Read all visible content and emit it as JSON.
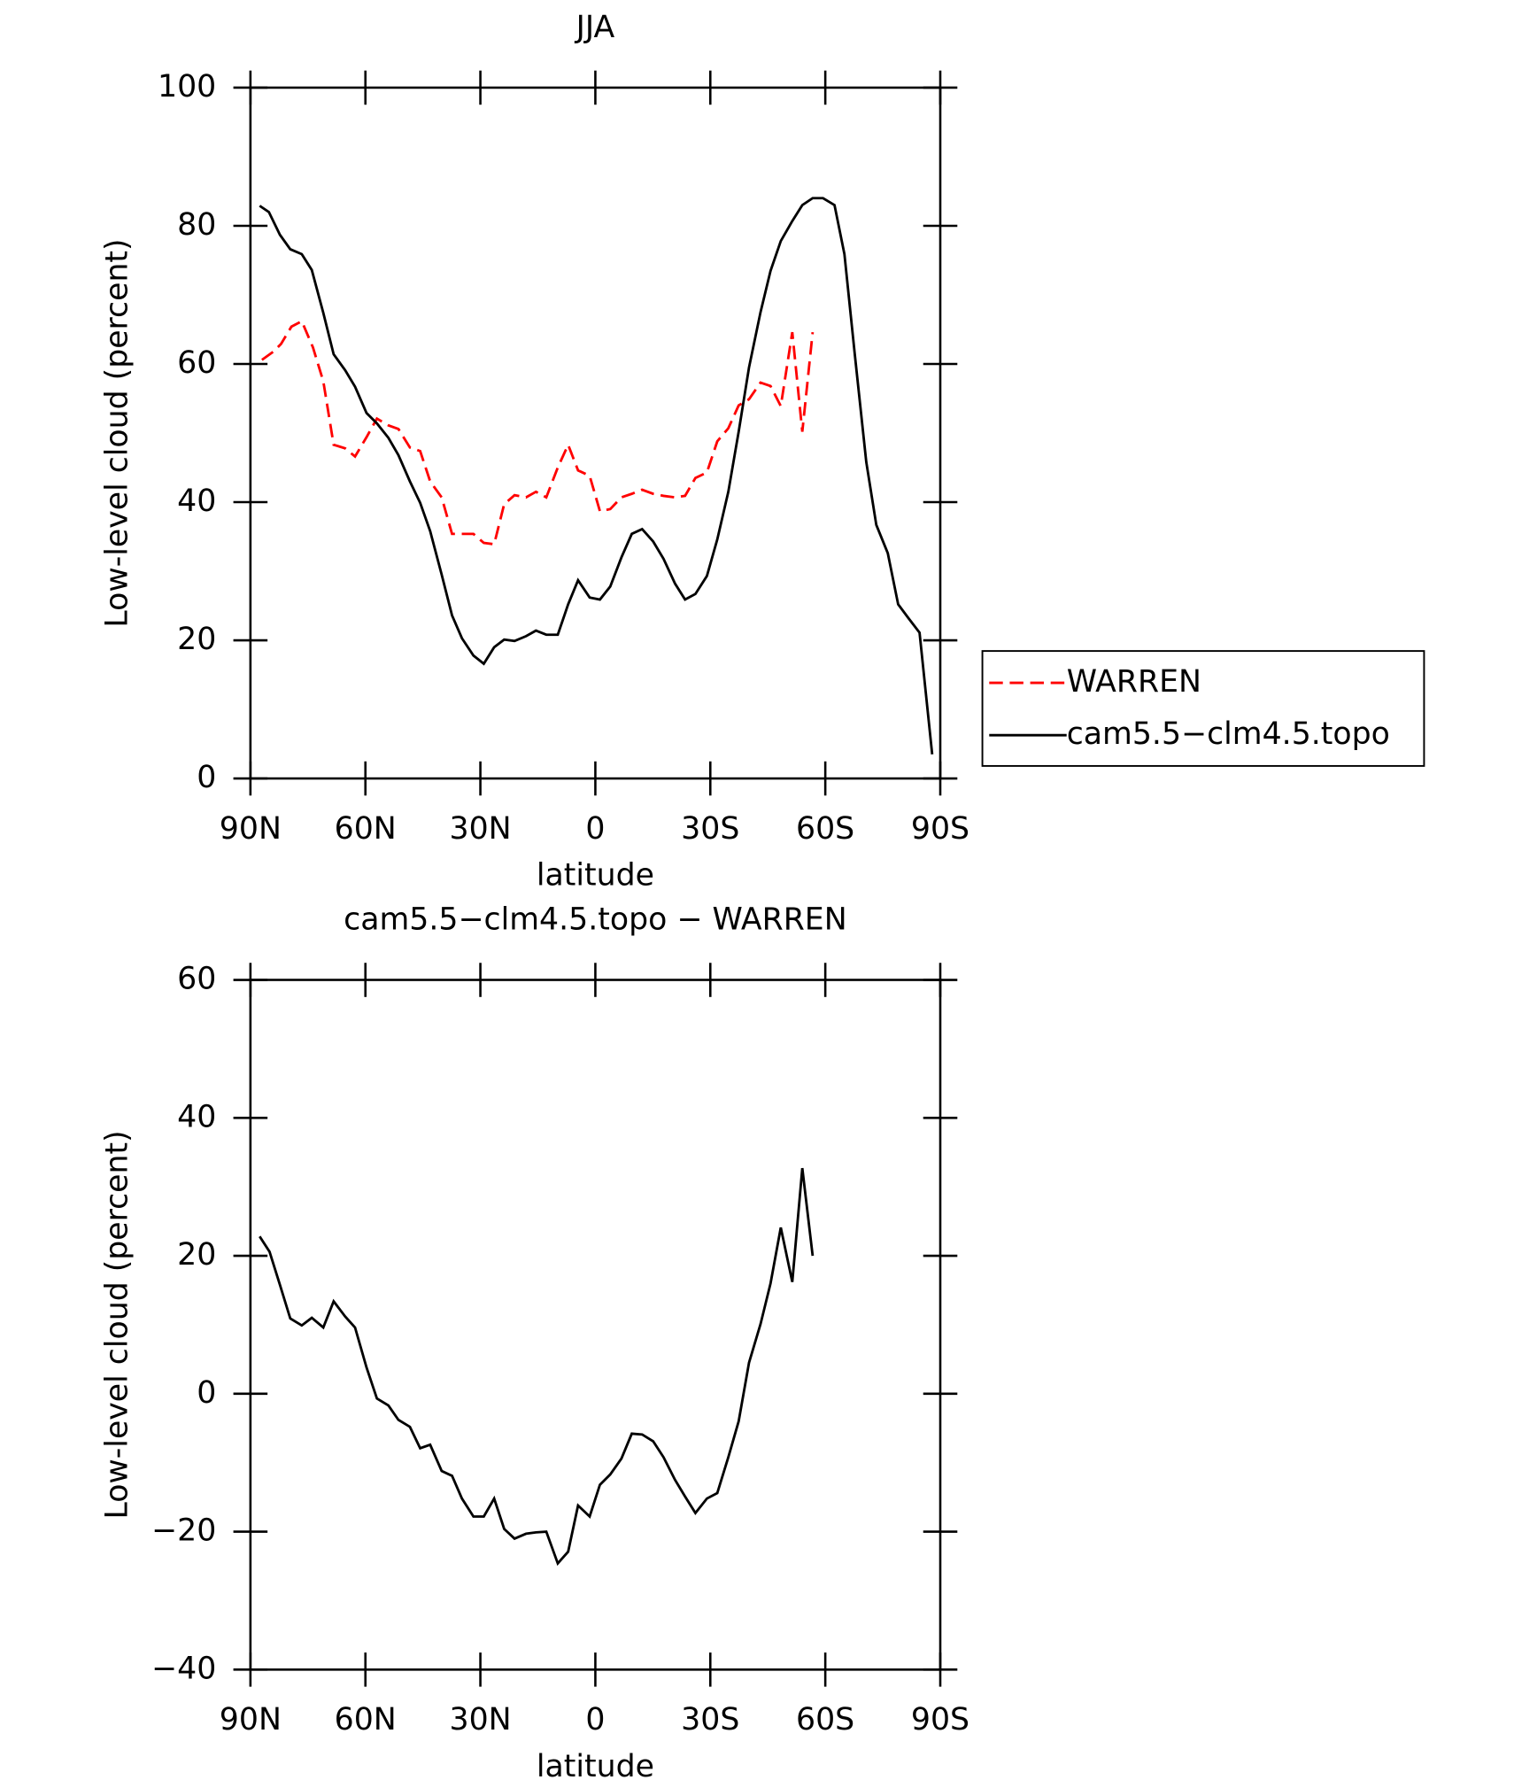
{
  "chart_data": [
    {
      "type": "line",
      "title": "JJA",
      "xlabel": "latitude",
      "ylabel": "Low-level cloud (percent)",
      "xlim": [
        90,
        -90
      ],
      "xticks": [
        {
          "value": 90,
          "label": "90N"
        },
        {
          "value": 60,
          "label": "60N"
        },
        {
          "value": 30,
          "label": "30N"
        },
        0,
        {
          "value": -30,
          "label": "30S"
        },
        {
          "value": -60,
          "label": "60S"
        },
        {
          "value": -90,
          "label": "90S"
        }
      ],
      "ylim": [
        0,
        100
      ],
      "yticks": [
        0,
        20,
        40,
        60,
        80,
        100
      ],
      "legend": "outside right",
      "series": [
        {
          "name": "WARREN",
          "color": "#ff0000",
          "line_style": "dashed",
          "x": [
            87,
            84,
            82,
            79.3,
            76.6,
            73.7,
            71,
            68.3,
            65.3,
            62.7,
            59.7,
            57,
            54,
            51.4,
            48.4,
            45.7,
            43.1,
            40.1,
            37.4,
            34.8,
            31.8,
            29.1,
            26.4,
            23.8,
            21.1,
            18.1,
            15.5,
            12.8,
            9.8,
            7.1,
            4.5,
            1.5,
            -1.2,
            -3.9,
            -6.8,
            -9.5,
            -12.2,
            -15.1,
            -17.8,
            -20.8,
            -23.4,
            -26.1,
            -29.1,
            -31.8,
            -34.7,
            -37.4,
            -40.1,
            -43.1,
            -45.7,
            -48.4,
            -51.4,
            -54,
            -56.7
          ],
          "values": [
            60.6,
            61.8,
            62.9,
            65.4,
            66.2,
            62.4,
            57.5,
            48.3,
            47.8,
            46.6,
            49.4,
            52.1,
            51.1,
            50.6,
            47.9,
            47.4,
            43,
            40.7,
            35.4,
            35.4,
            35.4,
            34.1,
            33.9,
            39.7,
            41,
            40.7,
            41.5,
            40.7,
            45,
            48.3,
            44.6,
            43.8,
            38.7,
            39,
            40.7,
            41.2,
            41.8,
            41.2,
            40.9,
            40.7,
            40.9,
            43.5,
            44.3,
            48.8,
            50.7,
            54,
            54.9,
            57.3,
            56.8,
            53.9,
            64.6,
            50.2,
            64.6
          ]
        },
        {
          "name": "cam5.5−clm4.5.topo",
          "color": "#000000",
          "line_style": "solid",
          "x": [
            87.6,
            85.2,
            82.3,
            79.6,
            76.6,
            74,
            71,
            68.3,
            65.3,
            62.7,
            59.7,
            57,
            54,
            51.4,
            48.4,
            45.7,
            43.1,
            40.1,
            37.4,
            34.8,
            31.8,
            29.1,
            26.4,
            23.8,
            21.1,
            18.1,
            15.5,
            12.8,
            9.8,
            7.1,
            4.5,
            1.5,
            -1.2,
            -3.9,
            -6.8,
            -9.5,
            -12.2,
            -15.1,
            -17.8,
            -20.8,
            -23.4,
            -26.1,
            -29.1,
            -31.8,
            -34.7,
            -37.4,
            -40.1,
            -43.1,
            -45.7,
            -48.4,
            -51.4,
            -54,
            -56.7,
            -59.4,
            -62.4,
            -65,
            -67.7,
            -70.7,
            -73.3,
            -76.3,
            -79,
            -81.7,
            -84.6,
            -87.9
          ],
          "values": [
            82.9,
            82,
            78.7,
            76.6,
            75.9,
            73.6,
            67.4,
            61.4,
            59.1,
            56.7,
            52.9,
            51.4,
            49.3,
            46.8,
            43,
            39.9,
            35.8,
            29.5,
            23.6,
            20.3,
            17.8,
            16.6,
            19,
            20.1,
            19.9,
            20.6,
            21.4,
            20.8,
            20.8,
            25.2,
            28.7,
            26.2,
            25.9,
            27.8,
            32,
            35.4,
            36.1,
            34.3,
            31.8,
            28.2,
            25.9,
            26.7,
            29.3,
            34.6,
            41.5,
            50.2,
            59.5,
            67.5,
            73.5,
            77.8,
            80.7,
            83,
            84,
            84,
            83,
            75.9,
            61.4,
            45.8,
            36.7,
            32.6,
            25.2,
            23.2,
            21.1,
            3.5
          ]
        }
      ]
    },
    {
      "type": "line",
      "title": "cam5.5−clm4.5.topo − WARREN",
      "xlabel": "latitude",
      "ylabel": "Low-level cloud (percent)",
      "xlim": [
        90,
        -90
      ],
      "xticks": [
        {
          "value": 90,
          "label": "90N"
        },
        {
          "value": 60,
          "label": "60N"
        },
        {
          "value": 30,
          "label": "30N"
        },
        0,
        {
          "value": -30,
          "label": "30S"
        },
        {
          "value": -60,
          "label": "60S"
        },
        {
          "value": -90,
          "label": "90S"
        }
      ],
      "ylim": [
        -40,
        60
      ],
      "yticks": [
        {
          "value": -40,
          "label": "−40"
        },
        {
          "value": -20,
          "label": "−20"
        },
        0,
        20,
        40,
        60
      ],
      "series": [
        {
          "color": "#000000",
          "line_style": "solid",
          "x": [
            87.6,
            85,
            82.3,
            79.6,
            76.6,
            74,
            71,
            68.3,
            65.3,
            62.7,
            59.7,
            57,
            54,
            51.4,
            48.4,
            45.7,
            43.1,
            40.1,
            37.4,
            34.8,
            31.8,
            29.1,
            26.4,
            23.8,
            21.1,
            18.1,
            15.5,
            12.8,
            9.8,
            7.1,
            4.5,
            1.5,
            -1.2,
            -3.9,
            -6.8,
            -9.5,
            -12.2,
            -15.1,
            -17.8,
            -20.8,
            -23.4,
            -26.1,
            -29.1,
            -31.8,
            -34.7,
            -37.4,
            -40.1,
            -43.1,
            -45.7,
            -48.4,
            -51.4,
            -54,
            -56.7
          ],
          "values": [
            22.8,
            20.6,
            15.8,
            10.9,
            9.9,
            11,
            9.6,
            13.4,
            11.2,
            9.6,
            3.8,
            -0.7,
            -1.7,
            -3.8,
            -4.8,
            -7.9,
            -7.4,
            -11.2,
            -11.9,
            -15.2,
            -17.8,
            -17.8,
            -15.2,
            -19.6,
            -21,
            -20.3,
            -20.1,
            -20,
            -24.6,
            -22.9,
            -16.2,
            -17.8,
            -13.2,
            -11.7,
            -9.4,
            -5.8,
            -5.9,
            -6.9,
            -9.2,
            -12.5,
            -14.9,
            -17.3,
            -15.2,
            -14.4,
            -9.2,
            -4,
            4.5,
            10.1,
            16,
            24.1,
            16.2,
            32.7,
            20
          ]
        }
      ]
    }
  ]
}
